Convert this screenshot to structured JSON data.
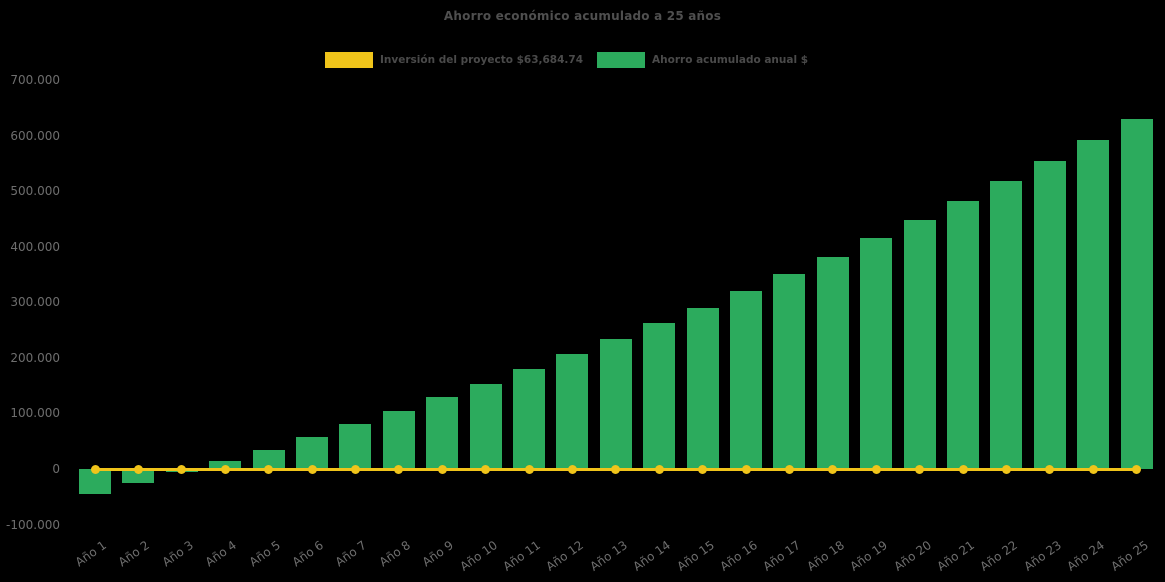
{
  "page": {
    "background": "#000000"
  },
  "chart_data": {
    "type": "combo",
    "title": "Ahorro económico acumulado a 25 años",
    "categories": [
      "Año 1",
      "Año 2",
      "Año 3",
      "Año 4",
      "Año 5",
      "Año 6",
      "Año 7",
      "Año 8",
      "Año 9",
      "Año 10",
      "Año 11",
      "Año 12",
      "Año 13",
      "Año 14",
      "Año 15",
      "Año 16",
      "Año 17",
      "Año 18",
      "Año 19",
      "Año 20",
      "Año 21",
      "Año 22",
      "Año 23",
      "Año 24",
      "Año 25"
    ],
    "series": [
      {
        "name": "Inversión del proyecto $63,684.74",
        "type": "line",
        "marker": "circle",
        "color": "#F0C41A",
        "values": [
          0,
          0,
          0,
          0,
          0,
          0,
          0,
          0,
          0,
          0,
          0,
          0,
          0,
          0,
          0,
          0,
          0,
          0,
          0,
          0,
          0,
          0,
          0,
          0,
          0
        ]
      },
      {
        "name": "Ahorro acumulado anual $",
        "type": "bar",
        "color": "#2CAB5D",
        "values": [
          -45000,
          -26000,
          -6000,
          15000,
          34500,
          57000,
          81000,
          104500,
          130000,
          153500,
          179500,
          207000,
          233500,
          262000,
          289000,
          320500,
          350500,
          382000,
          415500,
          448000,
          481500,
          518000,
          553500,
          591500,
          630500
        ]
      }
    ],
    "xlabel": "",
    "ylabel": "",
    "ylim": [
      -100000,
      700000
    ],
    "ytick_step": 100000,
    "ytick_labels": [
      "700.000",
      "600.000",
      "500.000",
      "400.000",
      "300.000",
      "200.000",
      "100.000",
      "0",
      "-100.000"
    ],
    "grid": false,
    "legend_position": "top-center",
    "title_color": "#4F4F4F",
    "axis_text_color": "#6E6E6E",
    "background": "#000000"
  }
}
